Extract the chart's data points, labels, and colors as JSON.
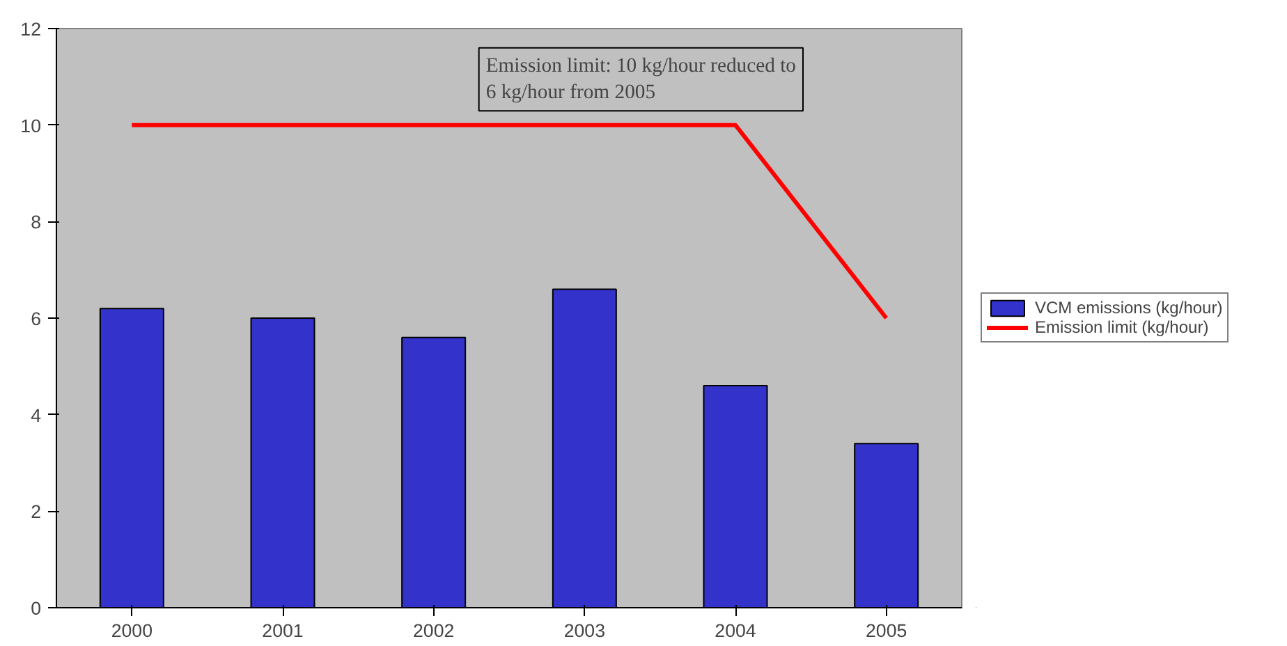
{
  "chart_data": {
    "type": "bar",
    "categories": [
      "2000",
      "2001",
      "2002",
      "2003",
      "2004",
      "2005"
    ],
    "series": [
      {
        "name": "VCM emissions (kg/hour)",
        "color": "#3333cc",
        "values": [
          6.2,
          6.0,
          5.6,
          6.6,
          4.6,
          3.4
        ]
      },
      {
        "name": "Emission limit (kg/hour)",
        "type": "line",
        "color": "#ff0000",
        "values": [
          10,
          10,
          10,
          10,
          10,
          6
        ]
      }
    ],
    "ylim": [
      0,
      12
    ],
    "yticks": [
      0,
      2,
      4,
      6,
      8,
      10,
      12
    ],
    "grid": false,
    "legend": "right",
    "annotations": [
      "Emission limit: 10 kg/hour reduced to 6 kg/hour from 2005"
    ]
  }
}
